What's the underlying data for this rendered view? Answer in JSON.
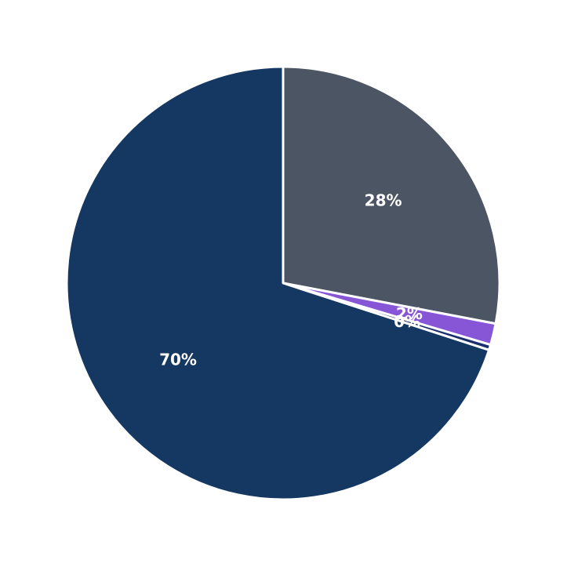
{
  "chart_data": {
    "type": "pie",
    "title": "",
    "start_angle_deg": 90,
    "direction": "clockwise",
    "slices": [
      {
        "value": 28.0,
        "label": "28%",
        "color": "#4b5563"
      },
      {
        "value": 1.6,
        "label": "2%",
        "color": "#8656d6"
      },
      {
        "value": 0.4,
        "label": "0%",
        "color": "#1a2f6e"
      },
      {
        "value": 70.0,
        "label": "70%",
        "color": "#143862"
      }
    ]
  }
}
